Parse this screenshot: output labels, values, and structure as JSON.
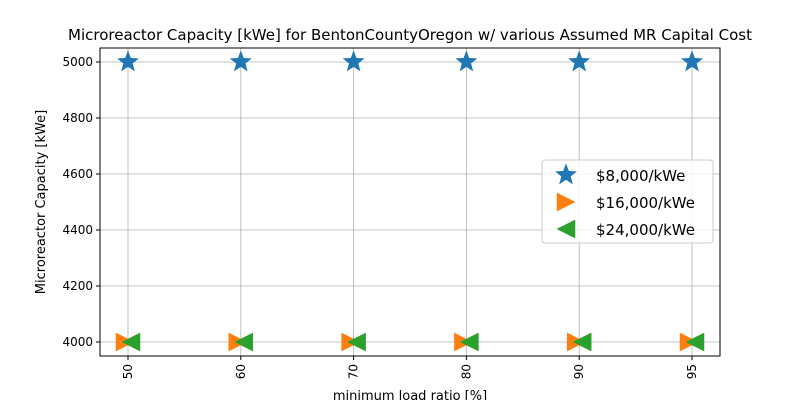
{
  "chart_data": {
    "type": "scatter",
    "title": "Microreactor Capacity [kWe] for BentonCountyOregon w/ various Assumed MR Capital Cost",
    "xlabel": "minimum load ratio [%]",
    "ylabel": "Microreactor Capacity [kWe]",
    "categories": [
      "50",
      "60",
      "70",
      "80",
      "90",
      "95"
    ],
    "yticks": [
      4000,
      4200,
      4400,
      4600,
      4800,
      5000
    ],
    "ylim": [
      3950,
      5050
    ],
    "grid": true,
    "legend_position": "right",
    "series": [
      {
        "name": "$8,000/kWe",
        "marker": "star",
        "color": "#1f77b4",
        "values": [
          5000,
          5000,
          5000,
          5000,
          5000,
          5000
        ]
      },
      {
        "name": "$16,000/kWe",
        "marker": "triangle-right",
        "color": "#ff7f0e",
        "values": [
          4000,
          4000,
          4000,
          4000,
          4000,
          4000
        ]
      },
      {
        "name": "$24,000/kWe",
        "marker": "triangle-left",
        "color": "#2ca02c",
        "values": [
          4000,
          4000,
          4000,
          4000,
          4000,
          4000
        ]
      }
    ]
  }
}
